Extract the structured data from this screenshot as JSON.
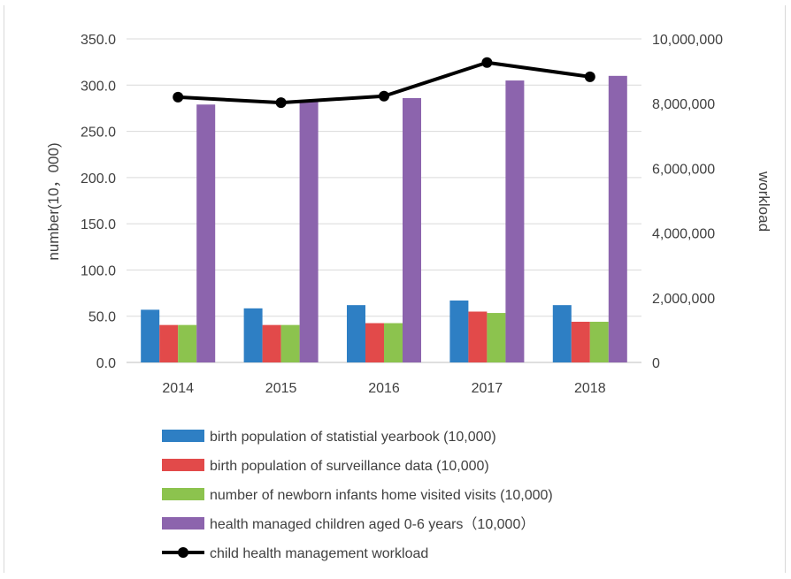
{
  "chart_data": {
    "type": "bar",
    "categories": [
      "2014",
      "2015",
      "2016",
      "2017",
      "2018"
    ],
    "series": [
      {
        "name": "birth population of statistial yearbook (10,000)",
        "type": "bar",
        "axis": "left",
        "color": "#2e7fc4",
        "values": [
          57.0,
          58.5,
          62.0,
          67.0,
          62.0
        ]
      },
      {
        "name": "birth population of surveillance data (10,000)",
        "type": "bar",
        "axis": "left",
        "color": "#e24a4a",
        "values": [
          40.5,
          40.5,
          42.5,
          55.0,
          44.0
        ]
      },
      {
        "name": "number of newborn infants home visited visits (10,000)",
        "type": "bar",
        "axis": "left",
        "color": "#8cc34e",
        "values": [
          40.5,
          40.5,
          42.5,
          53.5,
          44.0
        ]
      },
      {
        "name": "health managed children aged 0-6 years（10,000）",
        "type": "bar",
        "axis": "left",
        "color": "#8c64ad",
        "values": [
          279.0,
          282.0,
          286.0,
          305.0,
          310.0
        ]
      },
      {
        "name": "child health management workload",
        "type": "line",
        "axis": "right",
        "color": "#000000",
        "values": [
          8200000,
          8030000,
          8230000,
          9270000,
          8830000
        ]
      }
    ],
    "y_left": {
      "label": "number(10，000)",
      "min": 0,
      "max": 350,
      "ticks": [
        "0.0",
        "50.0",
        "100.0",
        "150.0",
        "200.0",
        "250.0",
        "300.0",
        "350.0"
      ]
    },
    "y_right": {
      "label": "workload",
      "min": 0,
      "max": 10000000,
      "ticks": [
        "0",
        "2,000,000",
        "4,000,000",
        "6,000,000",
        "8,000,000",
        "10,000,000"
      ]
    },
    "grid": true,
    "legend_position": "bottom"
  }
}
